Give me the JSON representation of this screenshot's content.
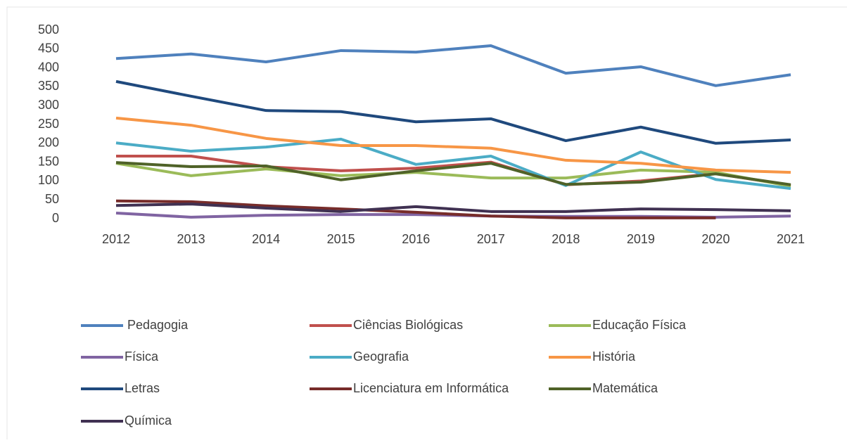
{
  "chart_data": {
    "type": "line",
    "x": [
      "2012",
      "2013",
      "2014",
      "2015",
      "2016",
      "2017",
      "2018",
      "2019",
      "2020",
      "2021"
    ],
    "ylim": [
      0,
      500
    ],
    "yticks": [
      0,
      50,
      100,
      150,
      200,
      250,
      300,
      350,
      400,
      450,
      500
    ],
    "grid": false,
    "legend": "bottom",
    "series": [
      {
        "name": "Pedagogia",
        "color": "#4f81bd",
        "values": [
          425,
          437,
          416,
          446,
          442,
          459,
          386,
          403,
          353,
          382
        ]
      },
      {
        "name": "Ciências Biológicas",
        "color": "#c0504d",
        "values": [
          166,
          166,
          138,
          127,
          134,
          150,
          90,
          100,
          120,
          88
        ]
      },
      {
        "name": "Educação Física",
        "color": "#9bbb59",
        "values": [
          147,
          114,
          132,
          114,
          123,
          108,
          108,
          129,
          123,
          86
        ]
      },
      {
        "name": "Física",
        "color": "#8064a2",
        "values": [
          15,
          4,
          9,
          11,
          11,
          7,
          6,
          6,
          4,
          7
        ]
      },
      {
        "name": "Geografia",
        "color": "#4bacc6",
        "values": [
          201,
          179,
          190,
          211,
          144,
          166,
          88,
          177,
          104,
          80
        ]
      },
      {
        "name": "História",
        "color": "#f79646",
        "values": [
          267,
          248,
          213,
          194,
          194,
          187,
          155,
          147,
          129,
          123
        ]
      },
      {
        "name": "Letras",
        "color": "#1f497d",
        "values": [
          364,
          325,
          287,
          284,
          257,
          265,
          207,
          243,
          200,
          209
        ]
      },
      {
        "name": "Licenciatura em Informática",
        "color": "#772c2a",
        "values": [
          47,
          45,
          34,
          26,
          17,
          7,
          2,
          2,
          2,
          null
        ]
      },
      {
        "name": "Matemática",
        "color": "#4f6228",
        "values": [
          149,
          138,
          140,
          103,
          127,
          147,
          91,
          97,
          119,
          90
        ]
      },
      {
        "name": "Química",
        "color": "#403152",
        "values": [
          35,
          39,
          28,
          19,
          32,
          19,
          19,
          26,
          24,
          21
        ]
      }
    ]
  }
}
